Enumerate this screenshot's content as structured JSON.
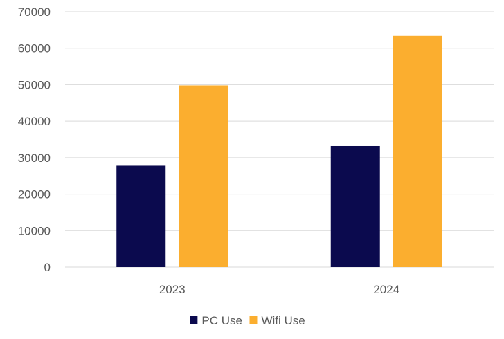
{
  "chart_data": {
    "type": "bar",
    "categories": [
      "2023",
      "2024"
    ],
    "series": [
      {
        "name": "PC Use",
        "values": [
          27800,
          33200
        ],
        "color": "#0b0a4e"
      },
      {
        "name": "Wifi Use",
        "values": [
          49800,
          63400
        ],
        "color": "#fbae2f"
      }
    ],
    "ylim": [
      0,
      70000
    ],
    "yticks": [
      0,
      10000,
      20000,
      30000,
      40000,
      50000,
      60000,
      70000
    ],
    "grid": true,
    "legend_position": "bottom",
    "gridline_color": "#d9d9d9",
    "text_color": "#595959"
  }
}
